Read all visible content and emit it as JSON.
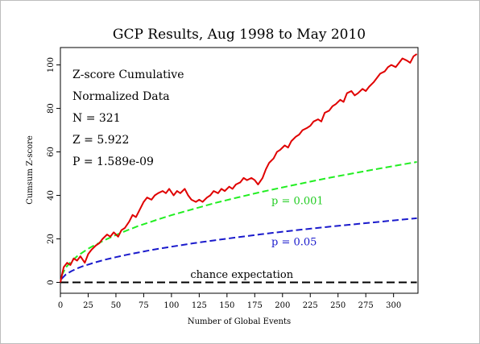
{
  "chart_data": {
    "type": "line",
    "title": "GCP Results, Aug 1998 to May 2010",
    "xlabel": "Number of Global Events",
    "ylabel": "Cumsum Z-score",
    "xlim": [
      0,
      322
    ],
    "ylim": [
      -5,
      108
    ],
    "x_ticks": [
      0,
      25,
      50,
      75,
      100,
      125,
      150,
      175,
      200,
      225,
      250,
      275,
      300
    ],
    "y_ticks": [
      0,
      20,
      40,
      60,
      80,
      100
    ],
    "grid": false,
    "stats": [
      "Z-score Cumulative",
      "Normalized Data",
      "N = 321",
      "Z = 5.922",
      "P = 1.589e-09"
    ],
    "series": [
      {
        "name": "cumulative Z-score",
        "color": "#e00000",
        "style": "solid",
        "x": [
          0,
          3,
          6,
          9,
          12,
          15,
          18,
          22,
          25,
          28,
          32,
          35,
          38,
          42,
          45,
          48,
          52,
          55,
          58,
          62,
          65,
          68,
          72,
          75,
          78,
          82,
          85,
          88,
          92,
          95,
          98,
          102,
          105,
          108,
          112,
          115,
          118,
          122,
          125,
          128,
          132,
          135,
          138,
          142,
          145,
          148,
          152,
          155,
          158,
          162,
          165,
          168,
          172,
          175,
          178,
          182,
          185,
          188,
          192,
          195,
          198,
          202,
          205,
          208,
          212,
          215,
          218,
          222,
          225,
          228,
          232,
          235,
          238,
          242,
          245,
          248,
          252,
          255,
          258,
          262,
          265,
          268,
          272,
          275,
          278,
          282,
          285,
          288,
          292,
          295,
          298,
          302,
          305,
          308,
          312,
          315,
          318,
          321
        ],
        "y": [
          0,
          7,
          9,
          8,
          11,
          10,
          12,
          9,
          13,
          15,
          17,
          18,
          20,
          22,
          21,
          23,
          21,
          24,
          25,
          28,
          31,
          30,
          34,
          37,
          39,
          38,
          40,
          41,
          42,
          41,
          43,
          40,
          42,
          41,
          43,
          40,
          38,
          37,
          38,
          37,
          39,
          40,
          42,
          41,
          43,
          42,
          44,
          43,
          45,
          46,
          48,
          47,
          48,
          47,
          45,
          48,
          52,
          55,
          57,
          60,
          61,
          63,
          62,
          65,
          67,
          68,
          70,
          71,
          72,
          74,
          75,
          74,
          78,
          79,
          81,
          82,
          84,
          83,
          87,
          88,
          86,
          87,
          89,
          88,
          90,
          92,
          94,
          96,
          97,
          99,
          100,
          99,
          101,
          103,
          102,
          101,
          104,
          105
        ]
      },
      {
        "name": "p = 0.001",
        "color": "#22ee22",
        "style": "dashed",
        "x": [
          1,
          5,
          10,
          15,
          20,
          25,
          30,
          40,
          50,
          60,
          70,
          80,
          90,
          100,
          120,
          140,
          160,
          180,
          200,
          220,
          240,
          260,
          280,
          300,
          321
        ],
        "y": [
          3.1,
          6.9,
          9.8,
          12.0,
          13.8,
          15.5,
          16.9,
          19.5,
          21.8,
          23.9,
          25.9,
          27.6,
          29.3,
          30.9,
          33.8,
          36.6,
          39.1,
          41.5,
          43.7,
          45.8,
          47.9,
          49.8,
          51.7,
          53.5,
          55.4
        ]
      },
      {
        "name": "p = 0.05",
        "color": "#1a1acc",
        "style": "dashed",
        "x": [
          1,
          5,
          10,
          15,
          20,
          25,
          30,
          40,
          50,
          60,
          70,
          80,
          90,
          100,
          120,
          140,
          160,
          180,
          200,
          220,
          240,
          260,
          280,
          300,
          321
        ],
        "y": [
          1.6,
          3.7,
          5.2,
          6.4,
          7.4,
          8.2,
          9.0,
          10.4,
          11.6,
          12.7,
          13.7,
          14.7,
          15.6,
          16.4,
          18.0,
          19.4,
          20.8,
          22.1,
          23.3,
          24.4,
          25.5,
          26.5,
          27.5,
          28.5,
          29.5
        ]
      },
      {
        "name": "chance expectation",
        "color": "#000000",
        "style": "dashed",
        "x": [
          0,
          321
        ],
        "y": [
          0,
          0
        ]
      }
    ],
    "annotations": [
      {
        "text": "p = 0.001",
        "x": 190,
        "y": 36,
        "color": "#22cc22"
      },
      {
        "text": "p = 0.05",
        "x": 190,
        "y": 17,
        "color": "#1a1acc"
      },
      {
        "text": "chance expectation",
        "x": 117,
        "y": 2,
        "color": "#000000"
      }
    ]
  }
}
